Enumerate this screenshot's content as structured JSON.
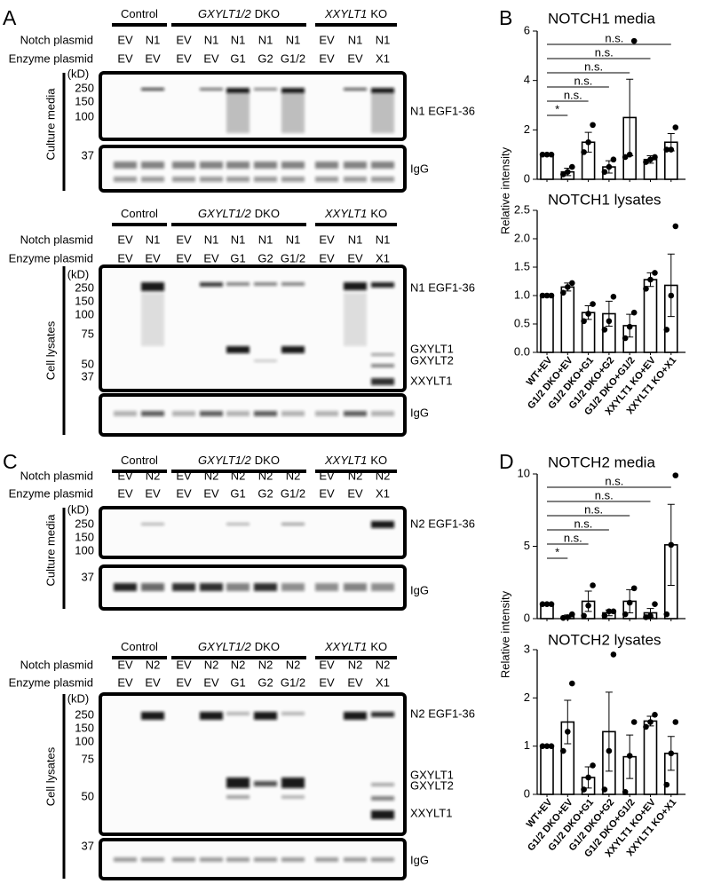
{
  "panels": [
    {
      "letter": "A",
      "blots": [
        {
          "groups": [
            {
              "label": "Control"
            },
            {
              "gene": "GXYLT1/2",
              "label": "DKO"
            },
            {
              "gene": "XXYLT1",
              "label": "KO"
            }
          ],
          "rows": [
            {
              "name": "Notch plasmid",
              "lanes": [
                "EV",
                "N1",
                "EV",
                "N1",
                "N1",
                "N1",
                "N1",
                "EV",
                "N1",
                "N1"
              ]
            },
            {
              "name": "Enzyme plasmid",
              "lanes": [
                "EV",
                "EV",
                "EV",
                "EV",
                "G1",
                "G2",
                "G1/2",
                "EV",
                "EV",
                "X1"
              ]
            }
          ],
          "unit": "(kD)",
          "side_label": "Culture media",
          "markers": [
            250,
            150,
            100,
            37
          ],
          "band_labels": [
            "N1 EGF1-36",
            "IgG"
          ]
        },
        {
          "groups": [
            {
              "label": "Control"
            },
            {
              "gene": "GXYLT1/2",
              "label": "DKO"
            },
            {
              "gene": "XXYLT1",
              "label": "KO"
            }
          ],
          "rows": [
            {
              "name": "Notch plasmid",
              "lanes": [
                "EV",
                "N1",
                "EV",
                "N1",
                "N1",
                "N1",
                "N1",
                "EV",
                "N1",
                "N1"
              ]
            },
            {
              "name": "Enzyme plasmid",
              "lanes": [
                "EV",
                "EV",
                "EV",
                "EV",
                "G1",
                "G2",
                "G1/2",
                "EV",
                "EV",
                "X1"
              ]
            }
          ],
          "unit": "(kD)",
          "side_label": "Cell  lysates",
          "markers": [
            250,
            150,
            100,
            75,
            50,
            37
          ],
          "band_labels": [
            "N1 EGF1-36",
            "GXYLT1",
            "GXYLT2",
            "XXYLT1",
            "IgG"
          ]
        }
      ]
    },
    {
      "letter": "B",
      "ylabel": "Relative intensity"
    },
    {
      "letter": "C",
      "blots": [
        {
          "groups": [
            {
              "label": "Control"
            },
            {
              "gene": "GXYLT1/2",
              "label": "DKO"
            },
            {
              "gene": "XXYLT1",
              "label": "KO"
            }
          ],
          "rows": [
            {
              "name": "Notch plasmid",
              "lanes": [
                "EV",
                "N2",
                "EV",
                "N2",
                "N2",
                "N2",
                "N2",
                "EV",
                "N2",
                "N2"
              ]
            },
            {
              "name": "Enzyme plasmid",
              "lanes": [
                "EV",
                "EV",
                "EV",
                "EV",
                "G1",
                "G2",
                "G1/2",
                "EV",
                "EV",
                "X1"
              ]
            }
          ],
          "unit": "(kD)",
          "side_label": "Culture media",
          "markers": [
            250,
            150,
            100,
            37
          ],
          "band_labels": [
            "N2 EGF1-36",
            "IgG"
          ]
        },
        {
          "groups": [
            {
              "label": "Control"
            },
            {
              "gene": "GXYLT1/2",
              "label": "DKO"
            },
            {
              "gene": "XXYLT1",
              "label": "KO"
            }
          ],
          "rows": [
            {
              "name": "Notch plasmid",
              "lanes": [
                "EV",
                "N2",
                "EV",
                "N2",
                "N2",
                "N2",
                "N2",
                "EV",
                "N2",
                "N2"
              ]
            },
            {
              "name": "Enzyme plasmid",
              "lanes": [
                "EV",
                "EV",
                "EV",
                "EV",
                "G1",
                "G2",
                "G1/2",
                "EV",
                "EV",
                "X1"
              ]
            }
          ],
          "unit": "(kD)",
          "side_label": "Cell  lysates",
          "markers": [
            250,
            150,
            100,
            75,
            50,
            37
          ],
          "band_labels": [
            "N2 EGF1-36",
            "GXYLT1",
            "GXYLT2",
            "XXYLT1",
            "IgG"
          ]
        }
      ]
    },
    {
      "letter": "D",
      "ylabel": "Relative intensity"
    }
  ],
  "chart_data": [
    {
      "type": "bar",
      "title": "NOTCH1 media",
      "color": "#ffffff",
      "point_color": "#000000",
      "categories": [
        null,
        null,
        null,
        null,
        null,
        null,
        null
      ],
      "values": [
        1.0,
        0.3,
        1.5,
        0.5,
        2.5,
        0.8,
        1.5
      ],
      "errors": [
        0,
        0.15,
        0.4,
        0.25,
        1.55,
        0.15,
        0.35
      ],
      "points": [
        [
          1,
          1,
          1
        ],
        [
          0.2,
          0.3,
          0.5
        ],
        [
          1.1,
          1.5,
          2.2
        ],
        [
          0.3,
          0.5,
          0.8
        ],
        [
          0.9,
          1.0,
          5.6
        ],
        [
          0.7,
          0.8,
          0.9
        ],
        [
          1.2,
          1.2,
          2.1
        ]
      ],
      "significance": [
        "*",
        "n.s.",
        "n.s.",
        "n.s.",
        "n.s.",
        "n.s."
      ],
      "ylim": [
        0,
        6
      ],
      "yticks": [
        0,
        2,
        4,
        6
      ]
    },
    {
      "type": "bar",
      "title": "NOTCH1 lysates",
      "color": "#ffffff",
      "point_color": "#000000",
      "categories": [
        "WT+EV",
        "G1/2 DKO+EV",
        "G1/2 DKO+G1",
        "G1/2 DKO+G2",
        "G1/2 DKO+G1/2",
        "XXYLT1 KO+EV",
        "XXYLT1 KO+X1"
      ],
      "values": [
        1.0,
        1.15,
        0.7,
        0.68,
        0.47,
        1.28,
        1.18
      ],
      "errors": [
        0,
        0.07,
        0.12,
        0.22,
        0.2,
        0.12,
        0.55
      ],
      "points": [
        [
          1,
          1,
          1
        ],
        [
          1.05,
          1.15,
          1.22
        ],
        [
          0.55,
          0.68,
          0.85
        ],
        [
          0.4,
          0.55,
          0.98
        ],
        [
          0.25,
          0.45,
          0.7
        ],
        [
          1.12,
          1.28,
          1.4
        ],
        [
          0.4,
          1.0,
          2.22
        ]
      ],
      "ylim": [
        0,
        2.5
      ],
      "yticks": [
        {
          "value": 0,
          "label": "0.0"
        },
        0.5,
        {
          "value": 1,
          "label": "1.0"
        },
        1.5,
        {
          "value": 2,
          "label": "2.0"
        },
        2.5
      ]
    },
    {
      "type": "bar",
      "title": "NOTCH2 media",
      "color": "#ffffff",
      "point_color": "#000000",
      "categories": [
        null,
        null,
        null,
        null,
        null,
        null,
        null
      ],
      "values": [
        1.0,
        0.15,
        1.2,
        0.4,
        1.2,
        0.4,
        5.1
      ],
      "errors": [
        0,
        0.1,
        0.7,
        0.2,
        0.8,
        0.3,
        2.8
      ],
      "points": [
        [
          1,
          1,
          1
        ],
        [
          0.05,
          0.1,
          0.3
        ],
        [
          0.2,
          0.9,
          2.3
        ],
        [
          0.2,
          0.5,
          0.5
        ],
        [
          0.3,
          1.1,
          2.1
        ],
        [
          0.1,
          0.2,
          1.0
        ],
        [
          0.3,
          5.1,
          9.9
        ]
      ],
      "significance": [
        "*",
        "n.s.",
        "n.s.",
        "n.s.",
        "n.s.",
        "n.s."
      ],
      "ylim": [
        0,
        10
      ],
      "yticks": [
        0,
        5,
        10
      ]
    },
    {
      "type": "bar",
      "title": "NOTCH2 lysates",
      "color": "#ffffff",
      "point_color": "#000000",
      "categories": [
        "WT+EV",
        "G1/2 DKO+EV",
        "G1/2 DKO+G1",
        "G1/2 DKO+G2",
        "G1/2 DKO+G1/2",
        "XXYLT1 KO+EV",
        "XXYLT1 KO+X1"
      ],
      "values": [
        1.0,
        1.5,
        0.35,
        1.3,
        0.78,
        1.52,
        0.85
      ],
      "errors": [
        0,
        0.45,
        0.22,
        0.82,
        0.45,
        0.1,
        0.35
      ],
      "points": [
        [
          1,
          1,
          1
        ],
        [
          0.9,
          1.3,
          2.3
        ],
        [
          0.1,
          0.35,
          0.6
        ],
        [
          0.1,
          0.9,
          2.9
        ],
        [
          0.05,
          0.8,
          1.5
        ],
        [
          1.4,
          1.5,
          1.65
        ],
        [
          0.2,
          0.85,
          1.5
        ]
      ],
      "ylim": [
        0,
        3
      ],
      "yticks": [
        0,
        1,
        2,
        3
      ]
    }
  ]
}
